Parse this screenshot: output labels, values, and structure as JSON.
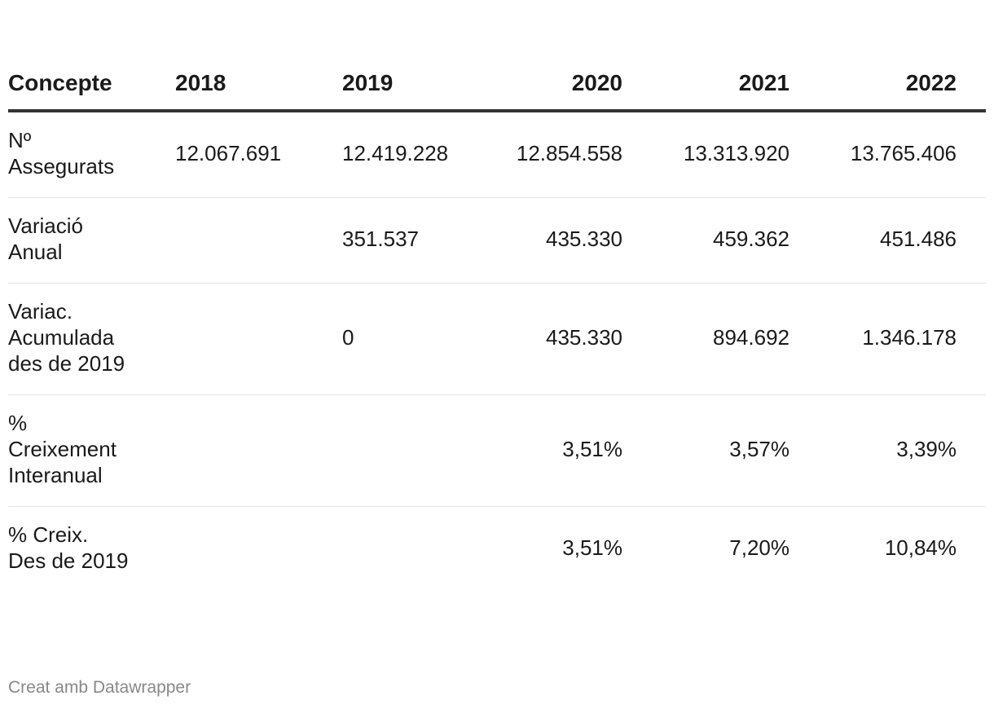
{
  "chart_data": {
    "type": "table",
    "columns": [
      "Concepte",
      "2018",
      "2019",
      "2020",
      "2021",
      "2022"
    ],
    "rows": [
      {
        "label": "Nº Assegurats",
        "values": [
          "12.067.691",
          "12.419.228",
          "12.854.558",
          "13.313.920",
          "13.765.406"
        ]
      },
      {
        "label": "Variació Anual",
        "values": [
          "",
          "351.537",
          "435.330",
          "459.362",
          "451.486"
        ]
      },
      {
        "label": "Variac. Acumulada des de 2019",
        "values": [
          "",
          "0",
          "435.330",
          "894.692",
          "1.346.178"
        ]
      },
      {
        "label": "% Creixement Interanual",
        "values": [
          "",
          "",
          "3,51%",
          "3,57%",
          "3,39%"
        ]
      },
      {
        "label": "% Creix. Des de 2019",
        "values": [
          "",
          "",
          "3,51%",
          "7,20%",
          "10,84%"
        ]
      }
    ]
  },
  "footer": {
    "credit": "Creat amb Datawrapper"
  }
}
